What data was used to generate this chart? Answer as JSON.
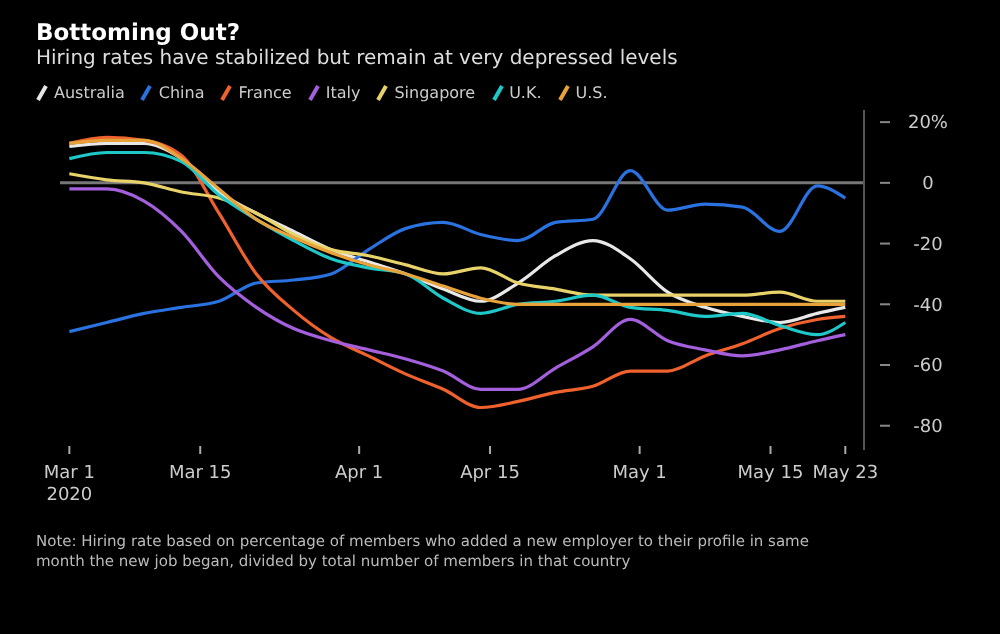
{
  "chart_data": {
    "type": "line",
    "title": "Bottoming Out?",
    "subtitle": "Hiring rates have stabilized but remain at very depressed levels",
    "x": [
      "2020-03-01",
      "2020-03-05",
      "2020-03-09",
      "2020-03-13",
      "2020-03-17",
      "2020-03-21",
      "2020-03-25",
      "2020-03-29",
      "2020-04-02",
      "2020-04-06",
      "2020-04-10",
      "2020-04-14",
      "2020-04-18",
      "2020-04-22",
      "2020-04-26",
      "2020-04-30",
      "2020-05-04",
      "2020-05-08",
      "2020-05-12",
      "2020-05-16",
      "2020-05-20",
      "2020-05-23"
    ],
    "series": [
      {
        "name": "Australia",
        "color": "#e8e8e8",
        "values": [
          12,
          13,
          13,
          8,
          -3,
          -10,
          -16,
          -22,
          -26,
          -30,
          -35,
          -39,
          -33,
          -24,
          -19,
          -25,
          -36,
          -41,
          -44,
          -46,
          -43,
          -41
        ]
      },
      {
        "name": "China",
        "color": "#2a72e0",
        "values": [
          -49,
          -46,
          -43,
          -41,
          -39,
          -33,
          -32,
          -30,
          -22,
          -15,
          -13,
          -17,
          -19,
          -13,
          -12,
          4,
          -9,
          -7,
          -8,
          -16,
          -1,
          -5
        ]
      },
      {
        "name": "France",
        "color": "#f0622d",
        "values": [
          13,
          15,
          14,
          9,
          -10,
          -30,
          -42,
          -51,
          -57,
          -63,
          -68,
          -74,
          -72,
          -69,
          -67,
          -62,
          -62,
          -57,
          -53,
          -48,
          -45,
          -44
        ]
      },
      {
        "name": "Italy",
        "color": "#a35fdc",
        "values": [
          -2,
          -2,
          -6,
          -16,
          -31,
          -41,
          -48,
          -52,
          -55,
          -58,
          -62,
          -68,
          -68,
          -61,
          -54,
          -45,
          -52,
          -55,
          -57,
          -55,
          -52,
          -50
        ]
      },
      {
        "name": "Singapore",
        "color": "#e8d26a",
        "values": [
          3,
          1,
          0,
          -3,
          -5,
          -10,
          -17,
          -22,
          -24,
          -27,
          -30,
          -28,
          -33,
          -35,
          -37,
          -37,
          -37,
          -37,
          -37,
          -36,
          -39,
          -39
        ]
      },
      {
        "name": "U.K.",
        "color": "#1fc8c8",
        "values": [
          8,
          10,
          10,
          7,
          -4,
          -12,
          -19,
          -25,
          -28,
          -30,
          -38,
          -43,
          -40,
          -39,
          -37,
          -41,
          -42,
          -44,
          -43,
          -47,
          -50,
          -46
        ]
      },
      {
        "name": "U.S.",
        "color": "#e8a23a",
        "values": [
          13,
          14,
          14,
          8,
          -2,
          -12,
          -18,
          -23,
          -27,
          -30,
          -34,
          -38,
          -40,
          -40,
          -40,
          -40,
          -40,
          -40,
          -40,
          -40,
          -40,
          -40
        ]
      }
    ],
    "xlim": [
      "2020-02-29",
      "2020-05-25"
    ],
    "xticks": [
      {
        "value": "2020-03-01",
        "label": "Mar 1\n2020"
      },
      {
        "value": "2020-03-15",
        "label": "Mar 15"
      },
      {
        "value": "2020-04-01",
        "label": "Apr 1"
      },
      {
        "value": "2020-04-15",
        "label": "Apr 15"
      },
      {
        "value": "2020-05-01",
        "label": "May 1"
      },
      {
        "value": "2020-05-15",
        "label": "May 15"
      },
      {
        "value": "2020-05-23",
        "label": "May 23"
      }
    ],
    "ylim": [
      -88,
      24
    ],
    "yticks": [
      {
        "value": 20,
        "label": "20%"
      },
      0,
      -20,
      -40,
      -60,
      -80
    ],
    "ref_lines": [
      {
        "axis": "y",
        "value": 0,
        "label": null,
        "color": "#777777"
      }
    ],
    "grid": false,
    "legend": "top left",
    "marker": "none",
    "line_style": "solid",
    "annotations": [
      "Note: Hiring rate based on percentage of members who added a new employer to their profile in same month the new job began, divided by total number of members in that country"
    ]
  }
}
